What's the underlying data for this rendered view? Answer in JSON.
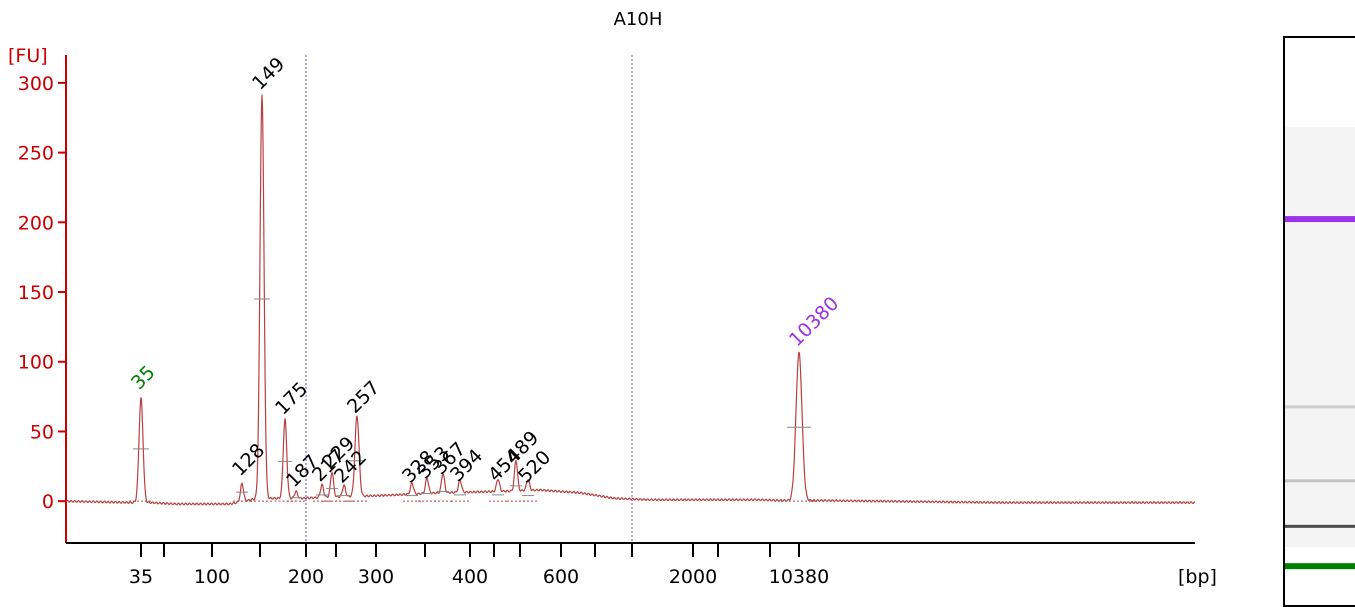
{
  "chart_data": {
    "type": "line",
    "title": "A10H",
    "ylabel": "[FU]",
    "xlabel": "[bp]",
    "ylim": [
      -30,
      320
    ],
    "y_ticks": [
      0,
      50,
      100,
      150,
      200,
      250,
      300
    ],
    "x_tick_labels": [
      "35",
      "100",
      "200",
      "300",
      "400",
      "600",
      "2000",
      "10380"
    ],
    "x_tick_marks": [
      "35",
      "",
      "100",
      "",
      "200",
      "",
      "300",
      "",
      "400",
      "",
      "600",
      "",
      "",
      "2000",
      "",
      "",
      "10380"
    ],
    "vertical_guides": [
      "200",
      "~1000"
    ],
    "colors": {
      "axis": "#cc0000",
      "trace": "#b84040",
      "lower_marker": "#008000",
      "upper_marker": "#9a33e6",
      "guide": "#5555cc",
      "label": "#000000"
    },
    "peaks": [
      {
        "label": "35",
        "height": 75,
        "color": "green"
      },
      {
        "label": "128",
        "height": 13,
        "color": "black"
      },
      {
        "label": "149",
        "height": 290,
        "color": "black"
      },
      {
        "label": "175",
        "height": 57,
        "color": "black"
      },
      {
        "label": "187",
        "height": 5,
        "color": "black"
      },
      {
        "label": "217",
        "height": 9,
        "color": "black"
      },
      {
        "label": "229",
        "height": 18,
        "color": "black"
      },
      {
        "label": "242",
        "height": 8,
        "color": "black"
      },
      {
        "label": "257",
        "height": 58,
        "color": "black"
      },
      {
        "label": "328",
        "height": 8,
        "color": "black"
      },
      {
        "label": "353",
        "height": 11,
        "color": "black"
      },
      {
        "label": "367",
        "height": 14,
        "color": "black"
      },
      {
        "label": "394",
        "height": 9,
        "color": "black"
      },
      {
        "label": "454",
        "height": 9,
        "color": "black"
      },
      {
        "label": "489",
        "height": 22,
        "color": "black"
      },
      {
        "label": "520",
        "height": 8,
        "color": "black"
      },
      {
        "label": "10380",
        "height": 106,
        "color": "purple"
      }
    ],
    "gel": {
      "upper_marker_color": "#9a33e6",
      "lower_marker_color": "#008000",
      "bands": [
        {
          "name": "upper-marker",
          "level": 0.32,
          "intensity": 1.0
        },
        {
          "name": "faint-band",
          "level": 0.65,
          "intensity": 0.25
        },
        {
          "name": "faint-band",
          "level": 0.78,
          "intensity": 0.3
        },
        {
          "name": "dark-band",
          "level": 0.86,
          "intensity": 0.9
        },
        {
          "name": "lower-marker",
          "level": 0.93,
          "intensity": 1.0
        }
      ]
    }
  }
}
